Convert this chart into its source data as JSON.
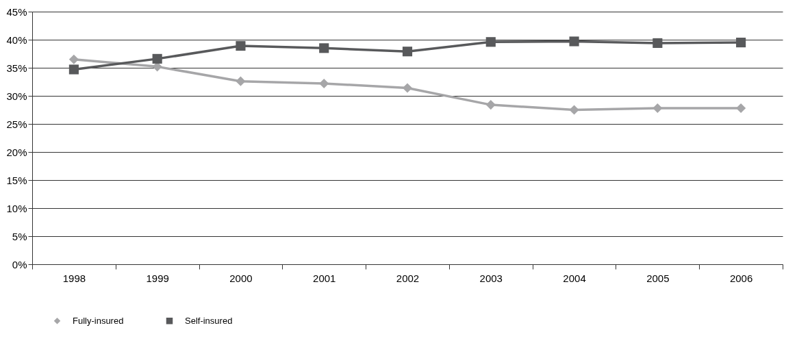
{
  "chart_data": {
    "type": "line",
    "categories": [
      "1998",
      "1999",
      "2000",
      "2001",
      "2002",
      "2003",
      "2004",
      "2005",
      "2006"
    ],
    "series": [
      {
        "name": "Fully-insured",
        "color": "#a6a6a8",
        "marker": "diamond",
        "values": [
          36.5,
          35.2,
          32.6,
          32.2,
          31.4,
          28.4,
          27.5,
          27.8,
          27.8
        ]
      },
      {
        "name": "Self-insured",
        "color": "#58595b",
        "marker": "square",
        "values": [
          34.7,
          36.6,
          38.9,
          38.5,
          37.9,
          39.6,
          39.7,
          39.4,
          39.5
        ]
      }
    ],
    "ylim": [
      0,
      45
    ],
    "yticks": [
      {
        "value": 0,
        "label": "0%"
      },
      {
        "value": 5,
        "label": "5%"
      },
      {
        "value": 10,
        "label": "10%"
      },
      {
        "value": 15,
        "label": "15%"
      },
      {
        "value": 20,
        "label": "20%"
      },
      {
        "value": 25,
        "label": "25%"
      },
      {
        "value": 30,
        "label": "30%"
      },
      {
        "value": 35,
        "label": "35%"
      },
      {
        "value": 40,
        "label": "40%"
      },
      {
        "value": 45,
        "label": "45%"
      }
    ],
    "grid": "y",
    "legend": "bottom",
    "line_style": "solid"
  }
}
